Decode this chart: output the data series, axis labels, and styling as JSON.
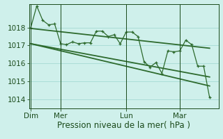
{
  "bg_color": "#cff0eb",
  "grid_color": "#aaddd7",
  "line_color": "#2d6a2d",
  "dark_color": "#1a4a1a",
  "ylabel_ticks": [
    1014,
    1015,
    1016,
    1017,
    1018
  ],
  "ylim": [
    1013.5,
    1019.3
  ],
  "xlabel": "Pression niveau de la mer( hPa )",
  "day_labels": [
    "Dim",
    "Mer",
    "Lun",
    "Mar"
  ],
  "day_positions": [
    0,
    5,
    16,
    25
  ],
  "xlim": [
    -0.3,
    31.5
  ],
  "series1_x": [
    0,
    1,
    2,
    3,
    4,
    5,
    6,
    7,
    8,
    9,
    10,
    11,
    12,
    13,
    14,
    15,
    16,
    17,
    18,
    19,
    20,
    21,
    22,
    23,
    24,
    25,
    26,
    27,
    28,
    29,
    30
  ],
  "series1_y": [
    1018.0,
    1019.2,
    1018.4,
    1018.15,
    1018.2,
    1017.1,
    1017.05,
    1017.2,
    1017.1,
    1017.15,
    1017.15,
    1017.8,
    1017.8,
    1017.5,
    1017.6,
    1017.1,
    1017.75,
    1017.75,
    1017.5,
    1016.1,
    1015.8,
    1016.05,
    1015.45,
    1016.7,
    1016.65,
    1016.7,
    1017.3,
    1017.05,
    1015.85,
    1015.85,
    1014.1
  ],
  "trend1_x": [
    0,
    30
  ],
  "trend1_y": [
    1017.95,
    1016.85
  ],
  "trend2_x": [
    0,
    30
  ],
  "trend2_y": [
    1017.1,
    1014.75
  ],
  "trend3_x": [
    0,
    30
  ],
  "trend3_y": [
    1017.1,
    1015.25
  ],
  "font_size": 7.5,
  "xlabel_fontsize": 8.5
}
